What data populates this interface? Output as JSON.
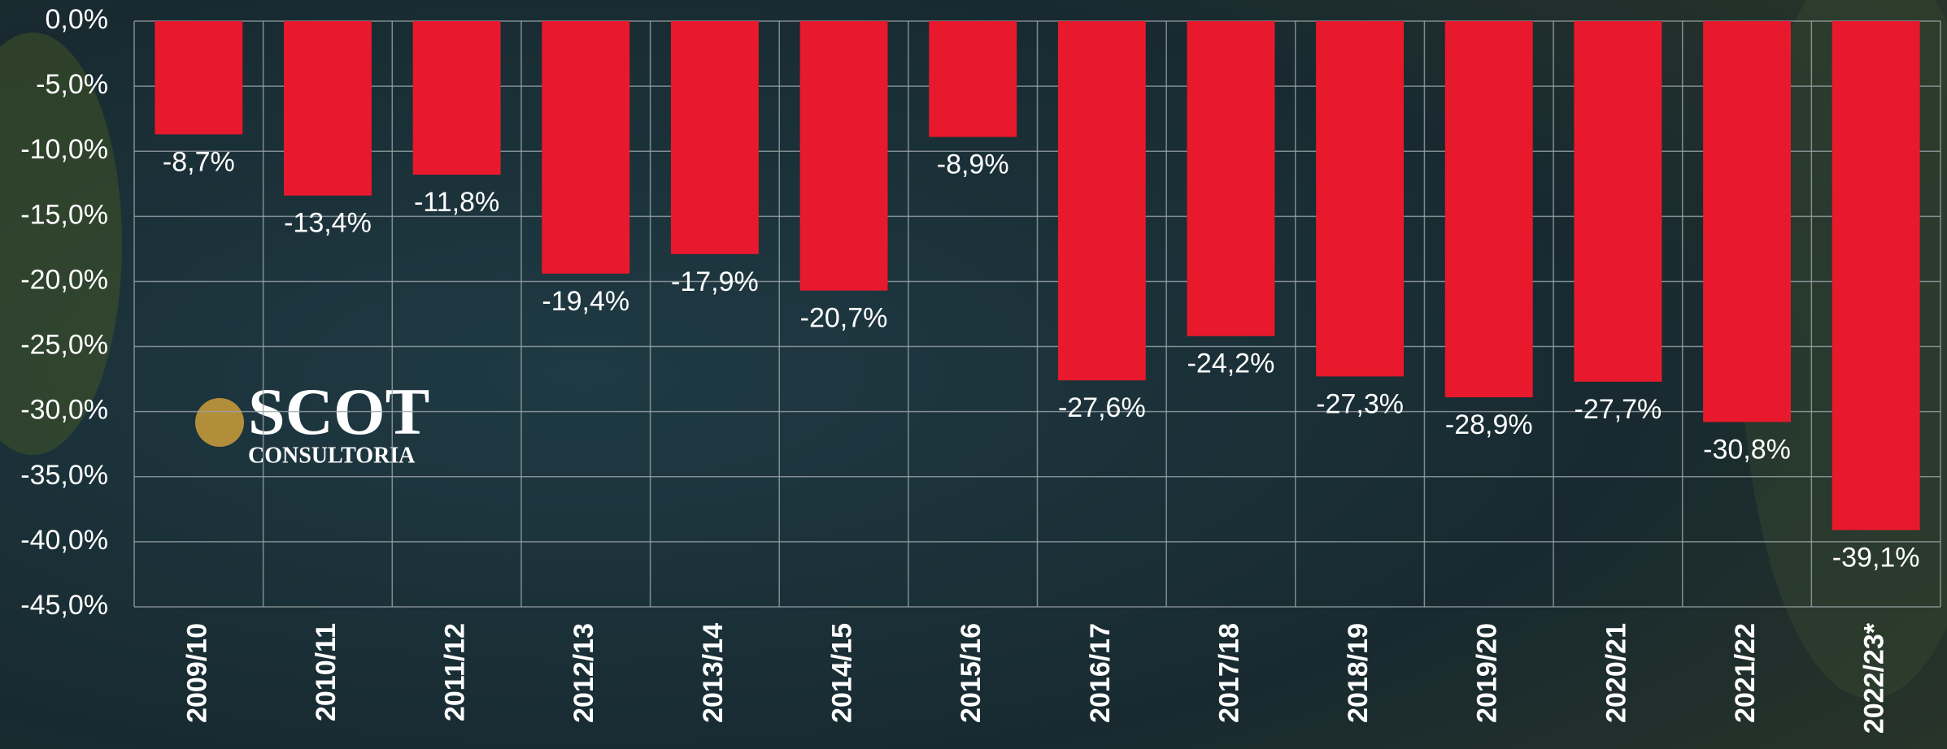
{
  "chart_data": {
    "type": "bar",
    "categories": [
      "2009/10",
      "2010/11",
      "2011/12",
      "2012/13",
      "2013/14",
      "2014/15",
      "2015/16",
      "2016/17",
      "2017/18",
      "2018/19",
      "2019/20",
      "2020/21",
      "2021/22",
      "2022/23*"
    ],
    "values": [
      -8.7,
      -13.4,
      -11.8,
      -19.4,
      -17.9,
      -20.7,
      -8.9,
      -27.6,
      -24.2,
      -27.3,
      -28.9,
      -27.7,
      -30.8,
      -39.1
    ],
    "value_labels": [
      "-8,7%",
      "-13,4%",
      "-11,8%",
      "-19,4%",
      "-17,9%",
      "-20,7%",
      "-8,9%",
      "-27,6%",
      "-24,2%",
      "-27,3%",
      "-28,9%",
      "-27,7%",
      "-30,8%",
      "-39,1%"
    ],
    "color": "#e8192c",
    "ylim": [
      -45,
      0
    ],
    "yticks": [
      {
        "value": 0,
        "label": "0,0%"
      },
      {
        "value": -5,
        "label": "-5,0%"
      },
      {
        "value": -10,
        "label": "-10,0%"
      },
      {
        "value": -15,
        "label": "-15,0%"
      },
      {
        "value": -20,
        "label": "-20,0%"
      },
      {
        "value": -25,
        "label": "-25,0%"
      },
      {
        "value": -30,
        "label": "-30,0%"
      },
      {
        "value": -35,
        "label": "-35,0%"
      },
      {
        "value": -40,
        "label": "-40,0%"
      },
      {
        "value": -45,
        "label": "-45,0%"
      }
    ],
    "grid": true
  },
  "logo": {
    "name": "SCOT",
    "subtitle": "CONSULTORIA"
  }
}
